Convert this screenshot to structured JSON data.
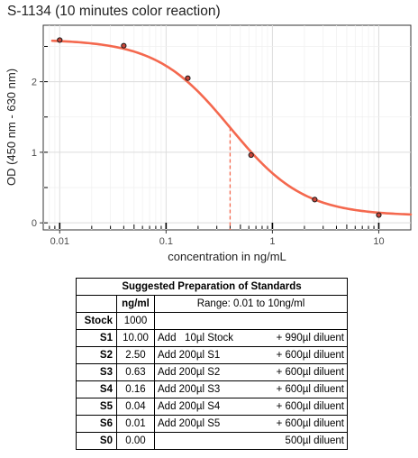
{
  "chart_data": {
    "type": "line",
    "title": "S-1134 (10 minutes color reaction)",
    "xlabel": "concentration in ng/mL",
    "ylabel": "OD (450 nm - 630 nm)",
    "x_scale": "log",
    "xlim": [
      0.007,
      20
    ],
    "ylim": [
      -0.1,
      2.8
    ],
    "x_tick_labels": [
      "0.01",
      "0.1",
      "1",
      "10"
    ],
    "x_ticks": [
      0.01,
      0.1,
      1,
      10
    ],
    "y_tick_labels": [
      "0",
      "1",
      "2"
    ],
    "y_ticks": [
      0,
      1,
      2
    ],
    "grid": true,
    "points": {
      "x": [
        0.01,
        0.04,
        0.16,
        0.63,
        2.5,
        10
      ],
      "y": [
        2.59,
        2.51,
        2.05,
        0.96,
        0.33,
        0.11
      ]
    },
    "fit_curve": {
      "top": 2.6,
      "bottom": 0.1,
      "ec50": 0.4,
      "hill": 1.25,
      "color": "#f4684e"
    },
    "midpoint_marker": {
      "x": 0.4,
      "y": 1.35,
      "color": "#f4684e"
    }
  },
  "table": {
    "title": "Suggested Preparation of Standards",
    "col_header": "ng/ml",
    "range_note": "Range: 0.01 to 10ng/ml",
    "stock": {
      "label": "Stock",
      "value": "1000"
    },
    "rows": [
      {
        "label": "S1",
        "value": "10.00",
        "instr_left": "Add   10µl Stock",
        "instr_right": "+ 990µl diluent"
      },
      {
        "label": "S2",
        "value": "2.50",
        "instr_left": "Add 200µl S1",
        "instr_right": "+ 600µl diluent"
      },
      {
        "label": "S3",
        "value": "0.63",
        "instr_left": "Add 200µl S2",
        "instr_right": "+ 600µl diluent"
      },
      {
        "label": "S4",
        "value": "0.16",
        "instr_left": "Add 200µl S3",
        "instr_right": "+ 600µl diluent"
      },
      {
        "label": "S5",
        "value": "0.04",
        "instr_left": "Add 200µl S4",
        "instr_right": "+ 600µl diluent"
      },
      {
        "label": "S6",
        "value": "0.01",
        "instr_left": "Add 200µl S5",
        "instr_right": "+ 600µl diluent"
      },
      {
        "label": "S0",
        "value": "0.00",
        "instr_left": "",
        "instr_right": "500µl diluent"
      }
    ]
  }
}
